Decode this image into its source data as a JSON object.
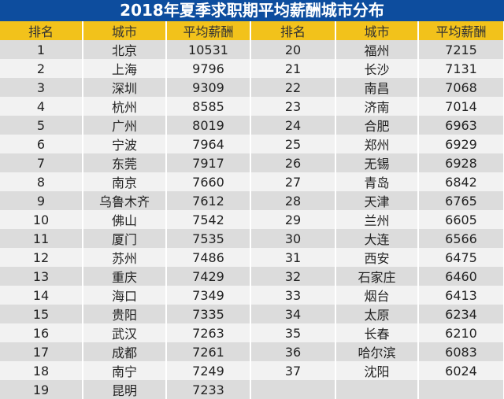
{
  "title": "2018年夏季求职期平均薪酬城市分布",
  "headers": [
    "排名",
    "城市",
    "平均薪酬",
    "排名",
    "城市",
    "平均薪酬"
  ],
  "left": [
    {
      "rank": "1",
      "city": "北京",
      "salary": "10531"
    },
    {
      "rank": "2",
      "city": "上海",
      "salary": "9796"
    },
    {
      "rank": "3",
      "city": "深圳",
      "salary": "9309"
    },
    {
      "rank": "4",
      "city": "杭州",
      "salary": "8585"
    },
    {
      "rank": "5",
      "city": "广州",
      "salary": "8019"
    },
    {
      "rank": "6",
      "city": "宁波",
      "salary": "7964"
    },
    {
      "rank": "7",
      "city": "东莞",
      "salary": "7917"
    },
    {
      "rank": "8",
      "city": "南京",
      "salary": "7660"
    },
    {
      "rank": "9",
      "city": "乌鲁木齐",
      "salary": "7612"
    },
    {
      "rank": "10",
      "city": "佛山",
      "salary": "7542"
    },
    {
      "rank": "11",
      "city": "厦门",
      "salary": "7535"
    },
    {
      "rank": "12",
      "city": "苏州",
      "salary": "7486"
    },
    {
      "rank": "13",
      "city": "重庆",
      "salary": "7429"
    },
    {
      "rank": "14",
      "city": "海口",
      "salary": "7349"
    },
    {
      "rank": "15",
      "city": "贵阳",
      "salary": "7335"
    },
    {
      "rank": "16",
      "city": "武汉",
      "salary": "7263"
    },
    {
      "rank": "17",
      "city": "成都",
      "salary": "7261"
    },
    {
      "rank": "18",
      "city": "南宁",
      "salary": "7249"
    },
    {
      "rank": "19",
      "city": "昆明",
      "salary": "7233"
    }
  ],
  "right": [
    {
      "rank": "20",
      "city": "福州",
      "salary": "7215"
    },
    {
      "rank": "21",
      "city": "长沙",
      "salary": "7131"
    },
    {
      "rank": "22",
      "city": "南昌",
      "salary": "7068"
    },
    {
      "rank": "23",
      "city": "济南",
      "salary": "7014"
    },
    {
      "rank": "24",
      "city": "合肥",
      "salary": "6963"
    },
    {
      "rank": "25",
      "city": "郑州",
      "salary": "6929"
    },
    {
      "rank": "26",
      "city": "无锡",
      "salary": "6928"
    },
    {
      "rank": "27",
      "city": "青岛",
      "salary": "6842"
    },
    {
      "rank": "28",
      "city": "天津",
      "salary": "6765"
    },
    {
      "rank": "29",
      "city": "兰州",
      "salary": "6605"
    },
    {
      "rank": "30",
      "city": "大连",
      "salary": "6566"
    },
    {
      "rank": "31",
      "city": "西安",
      "salary": "6475"
    },
    {
      "rank": "32",
      "city": "石家庄",
      "salary": "6460"
    },
    {
      "rank": "33",
      "city": "烟台",
      "salary": "6413"
    },
    {
      "rank": "34",
      "city": "太原",
      "salary": "6234"
    },
    {
      "rank": "35",
      "city": "长春",
      "salary": "6210"
    },
    {
      "rank": "36",
      "city": "哈尔滨",
      "salary": "6083"
    },
    {
      "rank": "37",
      "city": "沈阳",
      "salary": "6024"
    }
  ],
  "colors": {
    "title_bg": "#0d4d9e",
    "header_bg": "#f2c21b",
    "row_odd": "#dcdcdc",
    "row_even": "#f2f2f2"
  }
}
